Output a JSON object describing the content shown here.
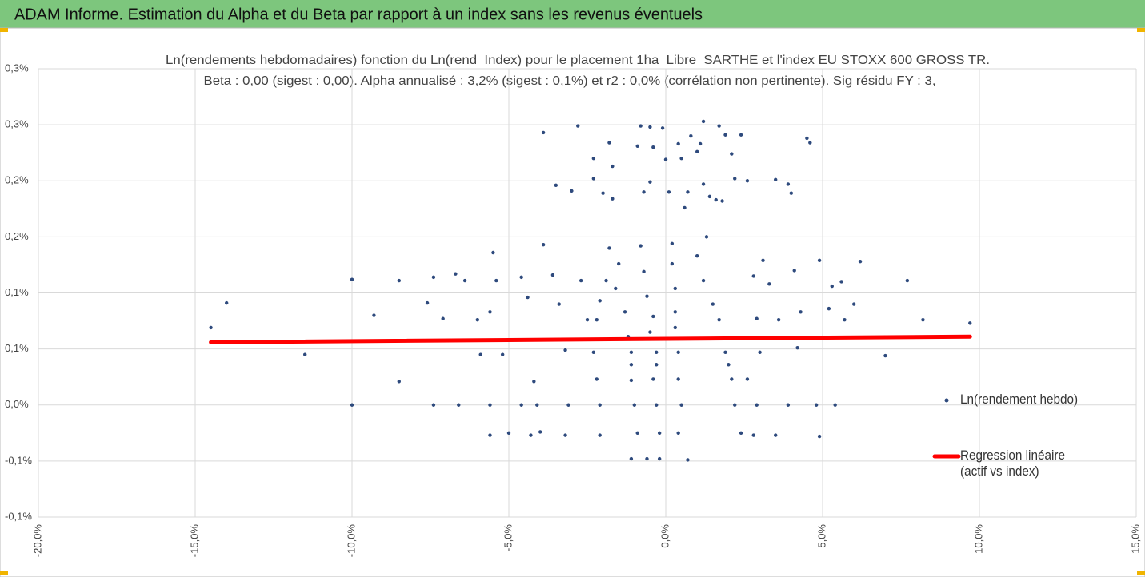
{
  "header": {
    "title": "ADAM Informe. Estimation du Alpha et du Beta par rapport à un index sans les revenus éventuels"
  },
  "chart_data": {
    "type": "scatter",
    "title": "Ln(rendements hebdomadaires) fonction du Ln(rend_Index) pour le placement 1ha_Libre_SARTHE et l'index EU STOXX 600 GROSS TR.",
    "subtitle": "Beta : 0,00 (sigest : 0,00). Alpha annualisé : 3,2% (sigest : 0,1%) et r2 : 0,0% (corrélation non pertinente). Sig résidu FY : 3,",
    "xlim": [
      -20,
      15
    ],
    "xticks": [
      {
        "value": -20,
        "label": "-20,0%"
      },
      {
        "value": -15,
        "label": "-15,0%"
      },
      {
        "value": -10,
        "label": "-10,0%"
      },
      {
        "value": -5,
        "label": "-5,0%"
      },
      {
        "value": 0,
        "label": "0,0%"
      },
      {
        "value": 5,
        "label": "5,0%"
      },
      {
        "value": 10,
        "label": "10,0%"
      },
      {
        "value": 15,
        "label": "15,0%"
      }
    ],
    "ylim": [
      -0.1,
      0.3
    ],
    "yticks": [
      {
        "value": -0.1,
        "label": "-0,1%"
      },
      {
        "value": -0.05,
        "label": "-0,1%"
      },
      {
        "value": 0,
        "label": "0,0%"
      },
      {
        "value": 0.05,
        "label": "0,1%"
      },
      {
        "value": 0.1,
        "label": "0,1%"
      },
      {
        "value": 0.15,
        "label": "0,2%"
      },
      {
        "value": 0.2,
        "label": "0,2%"
      },
      {
        "value": 0.25,
        "label": "0,3%"
      },
      {
        "value": 0.3,
        "label": "0,3%"
      }
    ],
    "grid": true,
    "series": [
      {
        "name": "Ln(rendement hebdo)",
        "color": "#2e4a7d",
        "x": [
          -14.5,
          -14.0,
          -11.5,
          -10.0,
          -10.0,
          -9.3,
          -8.5,
          -8.5,
          -7.4,
          -7.4,
          -7.6,
          -7.1,
          -6.6,
          -6.7,
          -6.4,
          -6.0,
          -5.9,
          -5.6,
          -5.6,
          -5.5,
          -5.4,
          -5.6,
          -5.2,
          -5.0,
          -4.6,
          -4.6,
          -4.4,
          -4.3,
          -4.2,
          -4.1,
          -4.0,
          -3.9,
          -3.5,
          -3.0,
          -2.8,
          -3.9,
          -3.6,
          -3.4,
          -3.2,
          -3.2,
          -3.1,
          -2.7,
          -2.5,
          -2.3,
          -2.3,
          -2.0,
          -1.8,
          -1.7,
          -1.7,
          -1.8,
          -1.9,
          -2.1,
          -2.2,
          -2.3,
          -2.2,
          -2.1,
          -2.1,
          -1.5,
          -1.6,
          -1.3,
          -1.2,
          -1.1,
          -1.1,
          -1.1,
          -1.0,
          -1.1,
          -0.9,
          -0.9,
          -0.8,
          -0.7,
          -0.5,
          -0.5,
          -0.4,
          -0.8,
          -0.7,
          -0.6,
          -0.4,
          -0.5,
          -0.3,
          -0.3,
          -0.4,
          -0.3,
          -0.2,
          -0.6,
          -0.2,
          -0.1,
          0,
          0.1,
          0.2,
          0.2,
          0.3,
          0.3,
          0.3,
          0.4,
          0.4,
          0.5,
          0.4,
          0.7,
          0.4,
          0.5,
          0.7,
          0.6,
          0.8,
          1.0,
          1.2,
          1.1,
          1.2,
          1.3,
          1.4,
          1.6,
          1.8,
          1.7,
          1.9,
          2.1,
          2.2,
          2.4,
          2.6,
          1.0,
          1.2,
          1.5,
          1.7,
          1.9,
          2.0,
          2.1,
          2.2,
          2.4,
          2.6,
          2.8,
          2.9,
          3.0,
          2.9,
          2.8,
          3.1,
          3.3,
          3.5,
          3.5,
          3.6,
          3.9,
          4.0,
          3.9,
          4.1,
          4.2,
          4.3,
          4.5,
          4.6,
          4.8,
          4.9,
          4.9,
          5.3,
          5.4,
          5.6,
          5.2,
          5.7,
          6.0,
          6.2,
          7.0,
          7.7,
          8.2,
          9.7
        ],
        "y": [
          0.069,
          0.091,
          0.045,
          0.112,
          0.0,
          0.08,
          0.021,
          0.111,
          0.114,
          0.0,
          0.091,
          0.077,
          0.0,
          0.117,
          0.111,
          0.076,
          0.045,
          0.0,
          -0.027,
          0.136,
          0.111,
          0.083,
          0.045,
          -0.025,
          0.0,
          0.114,
          0.096,
          -0.027,
          0.021,
          0.0,
          -0.024,
          0.243,
          0.196,
          0.191,
          0.249,
          0.143,
          0.116,
          0.09,
          0.049,
          -0.027,
          0.0,
          0.111,
          0.076,
          0.202,
          0.22,
          0.189,
          0.234,
          0.213,
          0.184,
          0.14,
          0.111,
          0.093,
          0.076,
          0.047,
          0.023,
          0.0,
          -0.027,
          0.126,
          0.104,
          0.083,
          0.061,
          0.047,
          0.036,
          0.022,
          0.0,
          -0.048,
          -0.025,
          0.231,
          0.249,
          0.19,
          0.199,
          0.248,
          0.23,
          0.142,
          0.119,
          0.097,
          0.079,
          0.065,
          0.047,
          0.036,
          0.023,
          0.0,
          -0.025,
          -0.048,
          -0.048,
          0.247,
          0.219,
          0.19,
          0.144,
          0.126,
          0.104,
          0.083,
          0.069,
          0.047,
          0.023,
          0.0,
          -0.025,
          -0.049,
          0.233,
          0.22,
          0.19,
          0.176,
          0.24,
          0.226,
          0.253,
          0.233,
          0.197,
          0.15,
          0.186,
          0.183,
          0.182,
          0.249,
          0.241,
          0.224,
          0.202,
          0.241,
          0.2,
          0.133,
          0.111,
          0.09,
          0.076,
          0.047,
          0.036,
          0.023,
          0.0,
          -0.025,
          0.023,
          0.115,
          0.077,
          0.047,
          0.0,
          -0.027,
          0.129,
          0.108,
          0.201,
          -0.027,
          0.076,
          0.197,
          0.189,
          0.0,
          0.12,
          0.051,
          0.083,
          0.238,
          0.234,
          0.0,
          0.129,
          -0.028,
          0.106,
          0.0,
          0.11,
          0.086,
          0.076,
          0.09,
          0.128,
          0.044,
          0.111,
          0.076,
          0.073
        ]
      },
      {
        "name": "Regression linéaire (actif vs index)",
        "color": "#ff0000",
        "type": "line",
        "x": [
          -14.5,
          9.7
        ],
        "y": [
          0.056,
          0.061
        ]
      }
    ]
  }
}
